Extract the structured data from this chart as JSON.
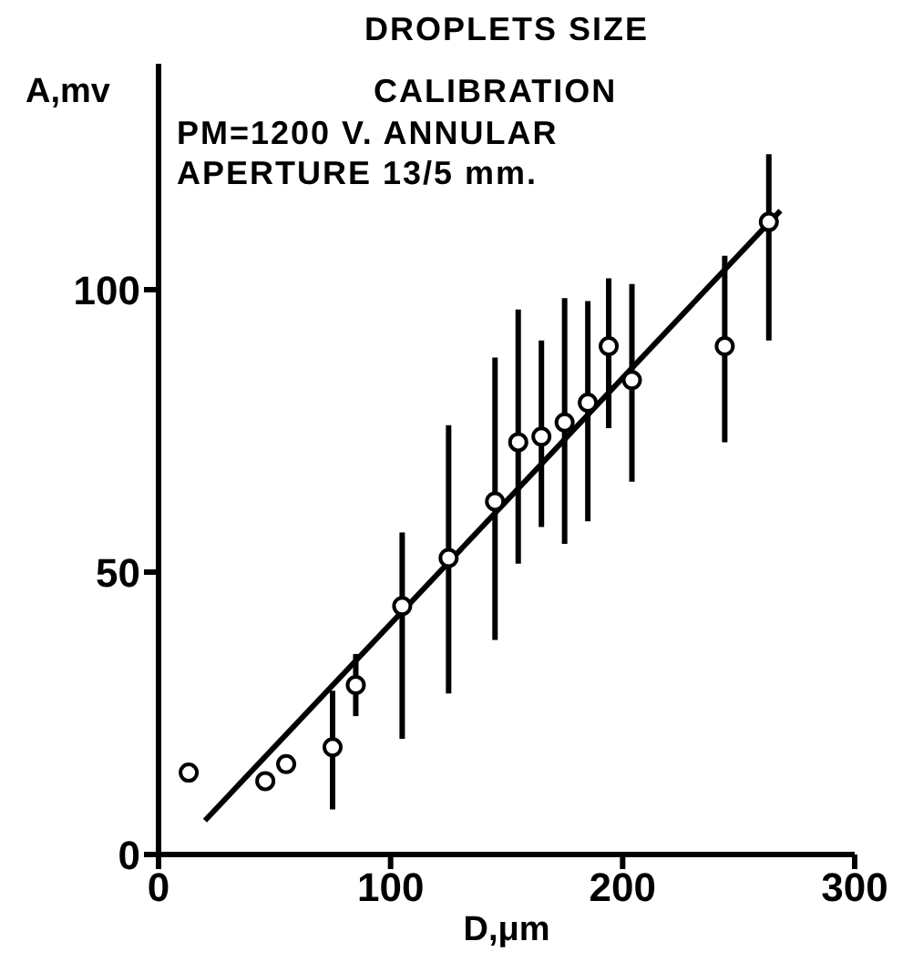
{
  "chart_data": {
    "type": "scatter",
    "title": "DROPLETS SIZE",
    "subtitle": "CALIBRATION",
    "xlabel": "D,μm",
    "ylabel": "A,mv",
    "annotations": [
      "PM=1200 V. ANNULAR APERTURE 13/5 mm."
    ],
    "xlim": [
      0,
      300
    ],
    "xticks": [
      0,
      100,
      200,
      300
    ],
    "ylim": [
      0,
      140
    ],
    "yticks": [
      0,
      50,
      100
    ],
    "marker": "circle",
    "series": [
      {
        "color": "#000000",
        "x": [
          13,
          46,
          55,
          75,
          85,
          105,
          125,
          145,
          155,
          165,
          175,
          185,
          194,
          204,
          244,
          263
        ],
        "values": [
          14.5,
          13,
          16,
          19,
          30,
          44,
          52.5,
          62.5,
          73,
          74,
          76.5,
          80,
          90,
          84,
          90,
          112
        ],
        "errors": [
          null,
          null,
          null,
          [
            8,
            29
          ],
          [
            24.5,
            35.5
          ],
          [
            20.5,
            57
          ],
          [
            28.5,
            76
          ],
          [
            38,
            88
          ],
          [
            51.5,
            96.5
          ],
          [
            58,
            91
          ],
          [
            55,
            98.5
          ],
          [
            59,
            98
          ],
          [
            75.5,
            102
          ],
          [
            66,
            101
          ],
          [
            73,
            106
          ],
          [
            91,
            124
          ]
        ]
      },
      {
        "type": "line",
        "color": "#000000",
        "marker": "none",
        "line_style": "solid",
        "x": [
          20,
          268
        ],
        "values": [
          6,
          114
        ]
      }
    ]
  }
}
